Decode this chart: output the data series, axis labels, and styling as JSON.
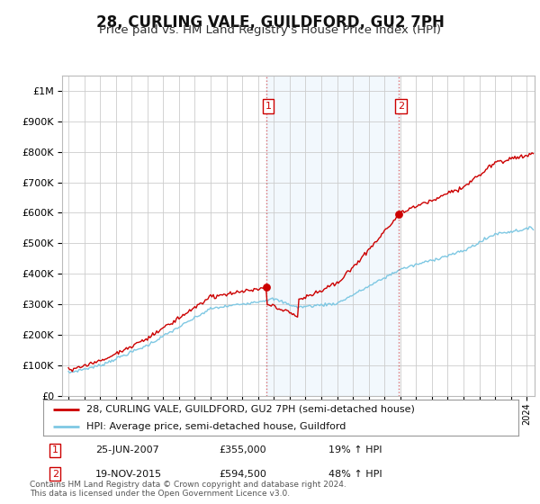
{
  "title": "28, CURLING VALE, GUILDFORD, GU2 7PH",
  "subtitle": "Price paid vs. HM Land Registry's House Price Index (HPI)",
  "title_fontsize": 12,
  "subtitle_fontsize": 9.5,
  "bg_color": "#ffffff",
  "grid_color": "#cccccc",
  "sale1_date": 2007.5,
  "sale1_price": 355000,
  "sale2_date": 2015.88,
  "sale2_price": 594500,
  "hpi_line_color": "#7ec8e3",
  "price_line_color": "#cc0000",
  "vline_color": "#cc0000",
  "vline_alpha": 0.55,
  "dot_color": "#cc0000",
  "ylim_min": 0,
  "ylim_max": 1050000,
  "xlim_min": 1994.6,
  "xlim_max": 2024.5,
  "fill_alpha": 0.15,
  "fill_color": "#aad4f5",
  "legend_label1": "28, CURLING VALE, GUILDFORD, GU2 7PH (semi-detached house)",
  "legend_label2": "HPI: Average price, semi-detached house, Guildford",
  "footer": "Contains HM Land Registry data © Crown copyright and database right 2024.\nThis data is licensed under the Open Government Licence v3.0."
}
